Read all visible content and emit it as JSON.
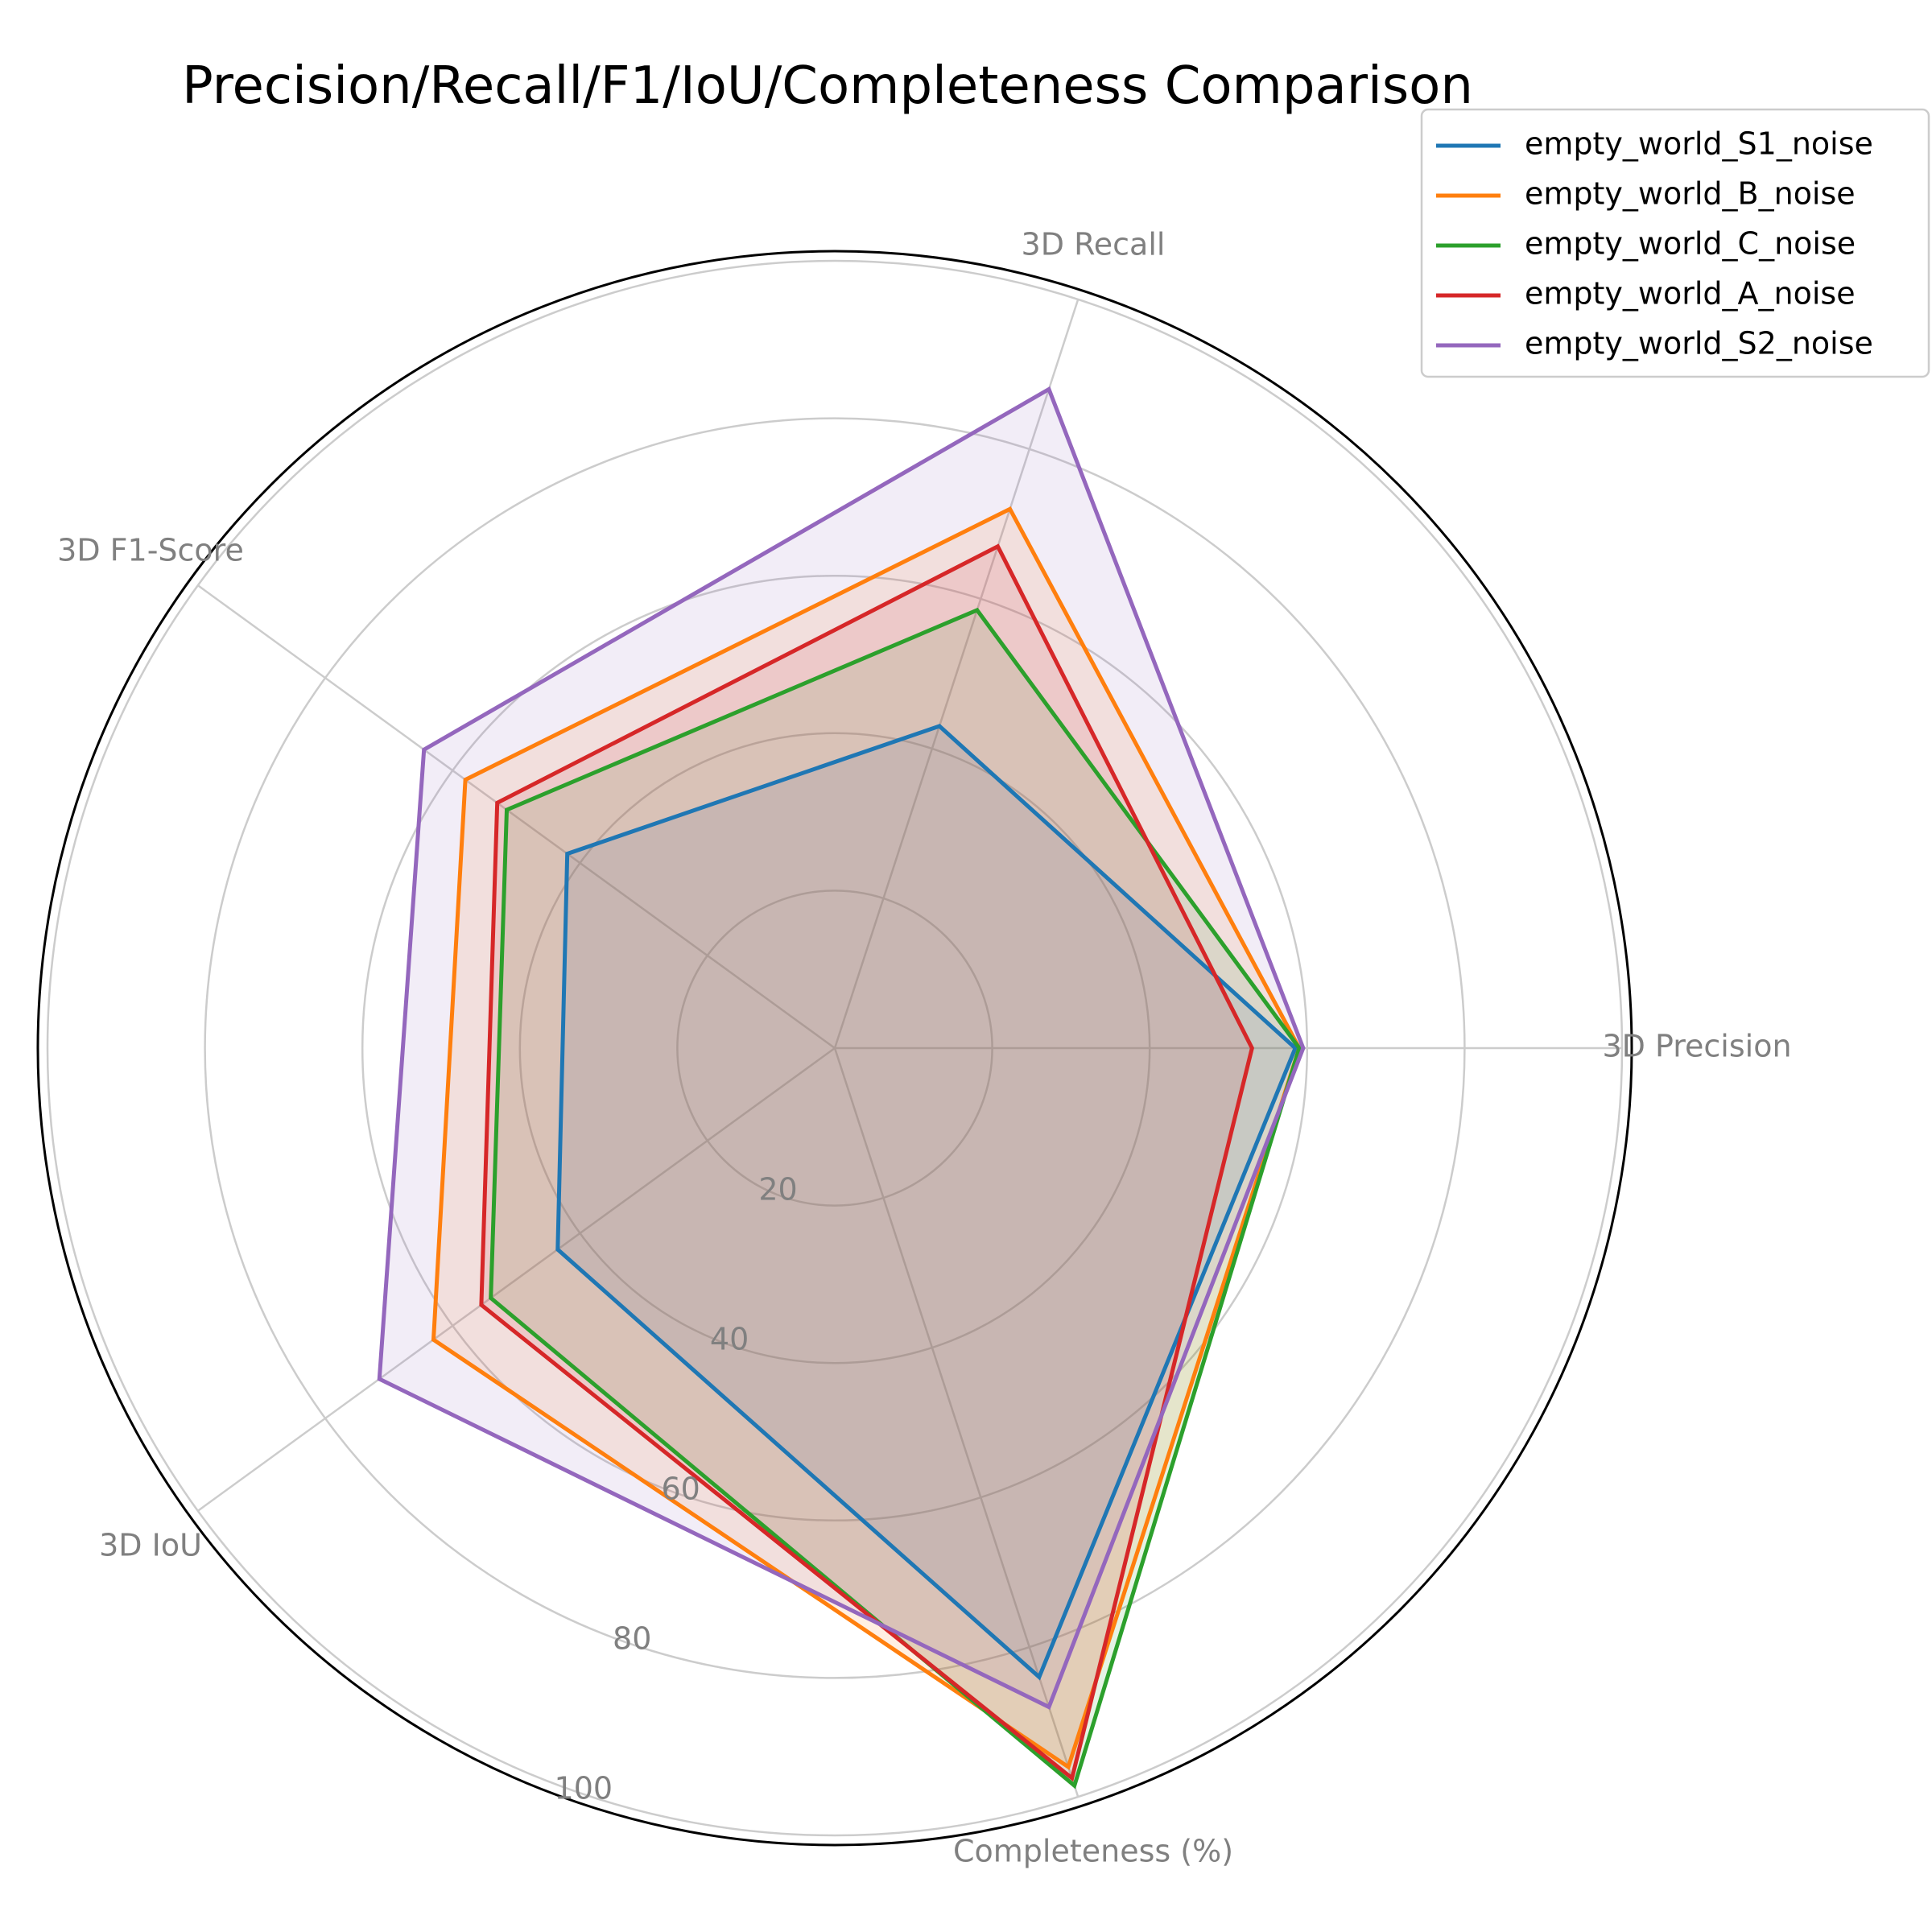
{
  "chart_data": {
    "type": "radar",
    "title": "Precision/Recall/F1/IoU/Completeness Comparison",
    "categories": [
      "3D Precision",
      "3D Recall",
      "3D F1-Score",
      "3D IoU",
      "Completeness (%)"
    ],
    "rlim": [
      0,
      100
    ],
    "rticks": [
      20,
      40,
      60,
      80,
      100
    ],
    "rtick_labels": [
      "20",
      "40",
      "60",
      "80",
      "100"
    ],
    "grid": true,
    "legend_position": "top-right",
    "fill_alpha": 0.12,
    "series": [
      {
        "name": "empty_world_S1_noise",
        "color": "#1f77b4",
        "values": [
          58.5,
          43.0,
          42.0,
          43.5,
          84.0
        ]
      },
      {
        "name": "empty_world_B_noise",
        "color": "#ff7f0e",
        "values": [
          59.0,
          72.0,
          58.0,
          63.0,
          96.0
        ]
      },
      {
        "name": "empty_world_C_noise",
        "color": "#2ca02c",
        "values": [
          59.0,
          58.5,
          51.5,
          54.0,
          98.5
        ]
      },
      {
        "name": "empty_world_A_noise",
        "color": "#d62728",
        "values": [
          53.0,
          67.0,
          53.0,
          55.5,
          97.5
        ]
      },
      {
        "name": "empty_world_S2_noise",
        "color": "#9467bd",
        "values": [
          59.5,
          88.0,
          64.5,
          71.5,
          88.0
        ]
      }
    ]
  }
}
